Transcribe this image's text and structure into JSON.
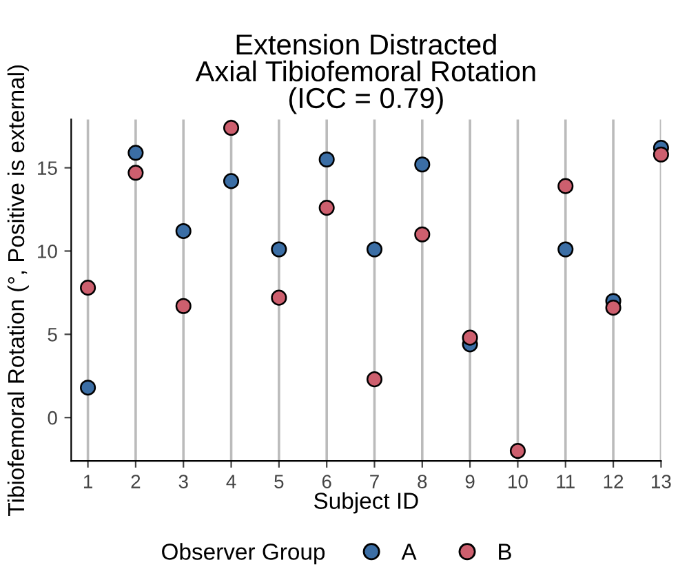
{
  "chart_data": {
    "type": "scatter",
    "title": "Extension Distracted\nAxial Tibiofemoral Rotation\n(ICC = 0.79)",
    "xlabel": "Subject ID",
    "ylabel": "Tibiofemoral Rotation (°, Positive is external)",
    "legend_title": "Observer Group",
    "categories": [
      "1",
      "2",
      "3",
      "4",
      "5",
      "6",
      "7",
      "8",
      "9",
      "10",
      "11",
      "12",
      "13"
    ],
    "series": [
      {
        "name": "A",
        "color": "#3b6ea5",
        "values": [
          1.8,
          15.9,
          11.2,
          14.2,
          10.1,
          15.5,
          10.1,
          15.2,
          4.4,
          null,
          10.1,
          7.0,
          16.2
        ]
      },
      {
        "name": "B",
        "color": "#cd5f6e",
        "values": [
          7.8,
          14.7,
          6.7,
          17.4,
          7.2,
          12.6,
          2.3,
          11.0,
          4.8,
          -2.0,
          13.9,
          6.6,
          15.8
        ]
      }
    ],
    "ylim": [
      -2.6,
      17.9
    ],
    "yticks": [
      0,
      5,
      10,
      15
    ],
    "grid": "x",
    "legend": "bottom",
    "marker": "circle"
  }
}
